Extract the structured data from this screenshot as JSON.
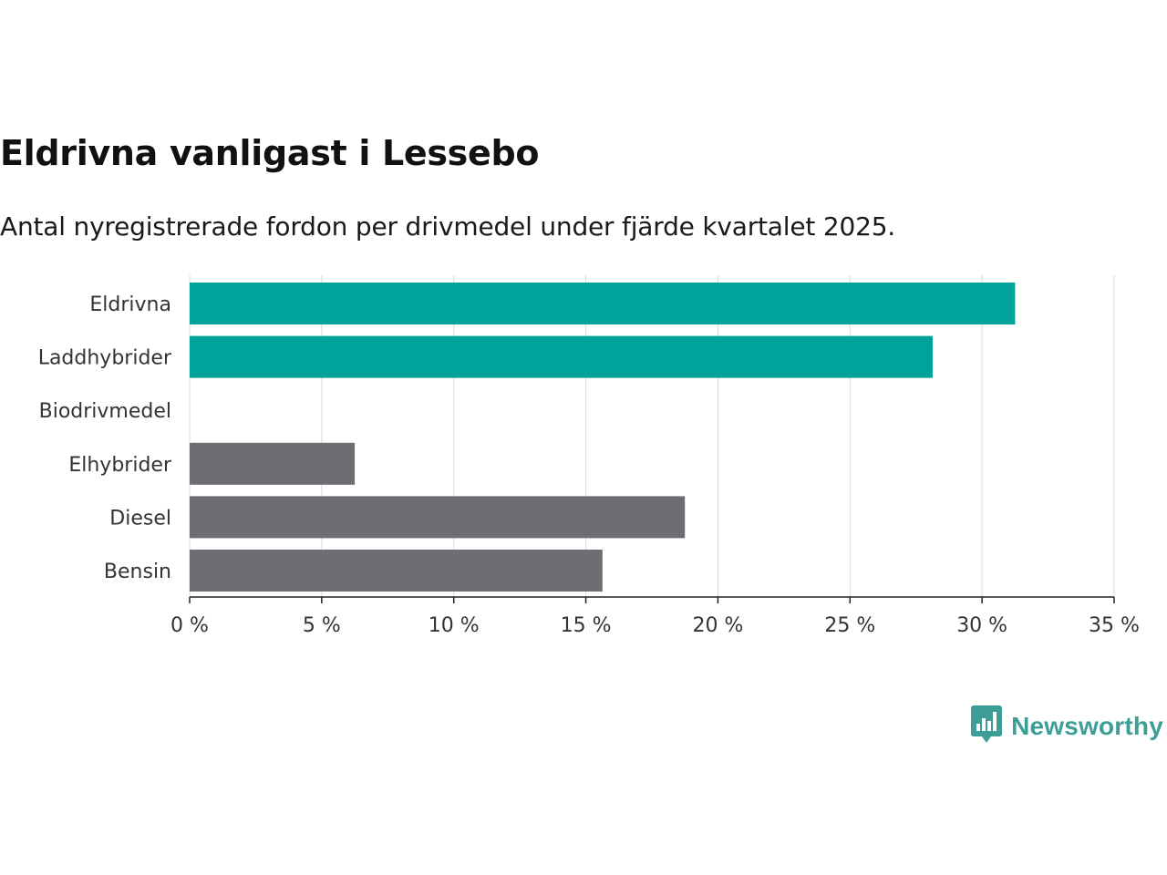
{
  "title": "Eldrivna vanligast i Lessebo",
  "subtitle": "Antal nyregistrerade fordon per drivmedel under fjärde kvartalet 2025.",
  "brand": {
    "name": "Newsworthy",
    "icon": "bar-chart-speech-bubble-icon",
    "color": "#3d9e98"
  },
  "colors": {
    "highlight": "#00a39a",
    "default": "#6e6d73",
    "grid": "#d9d9d9",
    "axis": "#222222"
  },
  "chart_data": {
    "type": "bar",
    "orientation": "horizontal",
    "categories": [
      "Eldrivna",
      "Laddhybrider",
      "Biodrivmedel",
      "Elhybrider",
      "Diesel",
      "Bensin"
    ],
    "values": [
      31.25,
      28.13,
      0,
      6.25,
      18.75,
      15.63
    ],
    "highlighted": [
      true,
      true,
      false,
      false,
      false,
      false
    ],
    "unit": "%",
    "xlim": [
      0,
      35
    ],
    "ticks": [
      0,
      5,
      10,
      15,
      20,
      25,
      30,
      35
    ],
    "tick_labels": [
      "0 %",
      "5 %",
      "10 %",
      "15 %",
      "20 %",
      "25 %",
      "30 %",
      "35 %"
    ],
    "grid": true,
    "title": "Eldrivna vanligast i Lessebo",
    "xlabel": "",
    "ylabel": ""
  }
}
